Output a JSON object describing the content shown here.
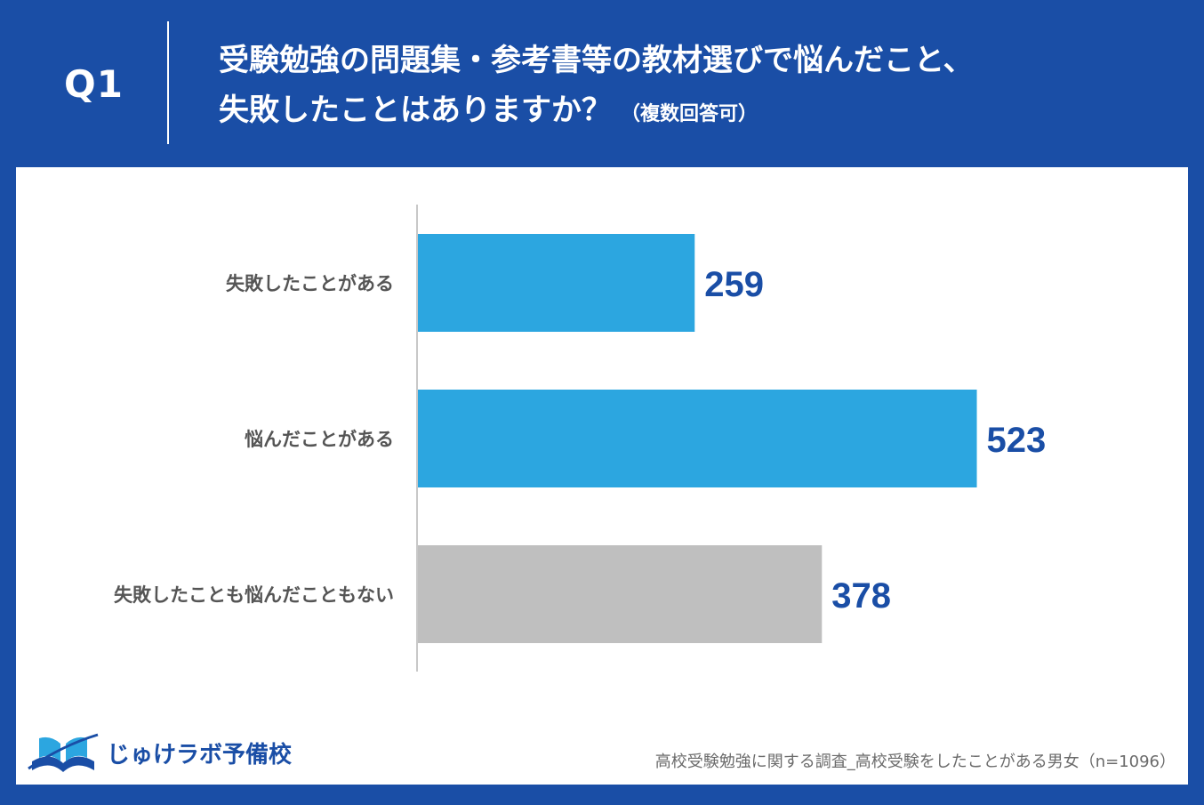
{
  "header": {
    "question_no": "Q1",
    "title_line1": "受験勉強の問題集・参考書等の教材選びで悩んだこと、",
    "title_line2": "失敗したことはありますか？",
    "title_note": "（複数回答可）"
  },
  "chart_data": {
    "type": "bar",
    "orientation": "horizontal",
    "categories": [
      "失敗したことがある",
      "悩んだことがある",
      "失敗したことも悩んだこともない"
    ],
    "values": [
      259,
      523,
      378
    ],
    "value_labels": [
      "259",
      "523",
      "378"
    ],
    "bar_colors": [
      "#2ca6e0",
      "#2ca6e0",
      "#bfbfbf"
    ],
    "xlim": [
      0,
      560
    ],
    "grid": false
  },
  "footer": {
    "logo_text": "じゅけラボ予備校",
    "source": "高校受験勉強に関する調査_高校受験をしたことがある男女（n=1096）"
  },
  "colors": {
    "brand_blue": "#1a4ea6",
    "bar_blue": "#2ca6e0",
    "bar_gray": "#bfbfbf"
  }
}
